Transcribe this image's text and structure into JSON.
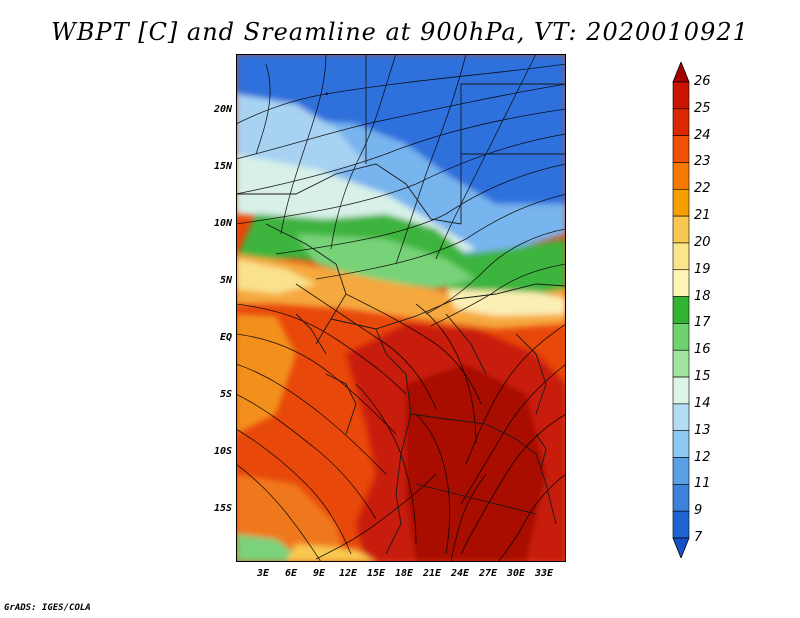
{
  "title": "WBPT [C] and Sreamline at 900hPa, VT: 2020010921",
  "credit": "GrADS: IGES/COLA",
  "map": {
    "variable": "Wet-bulb potential temperature",
    "units": "C",
    "level": "900hPa",
    "valid_time": "2020010921",
    "lat_labels": [
      "20N",
      "15N",
      "10N",
      "5N",
      "EQ",
      "5S",
      "10S",
      "15S"
    ],
    "lon_labels": [
      "3E",
      "6E",
      "9E",
      "12E",
      "15E",
      "18E",
      "21E",
      "24E",
      "27E",
      "30E",
      "33E"
    ]
  },
  "colorbar": {
    "labels": [
      "26",
      "25",
      "24",
      "23",
      "22",
      "21",
      "20",
      "19",
      "18",
      "17",
      "16",
      "15",
      "14",
      "13",
      "12",
      "11",
      "9",
      "7"
    ],
    "colors": [
      "#a50000",
      "#c81400",
      "#dc2800",
      "#f05000",
      "#f57800",
      "#f5a000",
      "#f8c850",
      "#fae58c",
      "#fcf5b4",
      "#32b432",
      "#6ed26e",
      "#a0e6a0",
      "#dcf5e6",
      "#b4dcf5",
      "#8cc8f0",
      "#5aa0e6",
      "#3c82dc",
      "#1e64d2",
      "#1450c8"
    ]
  }
}
